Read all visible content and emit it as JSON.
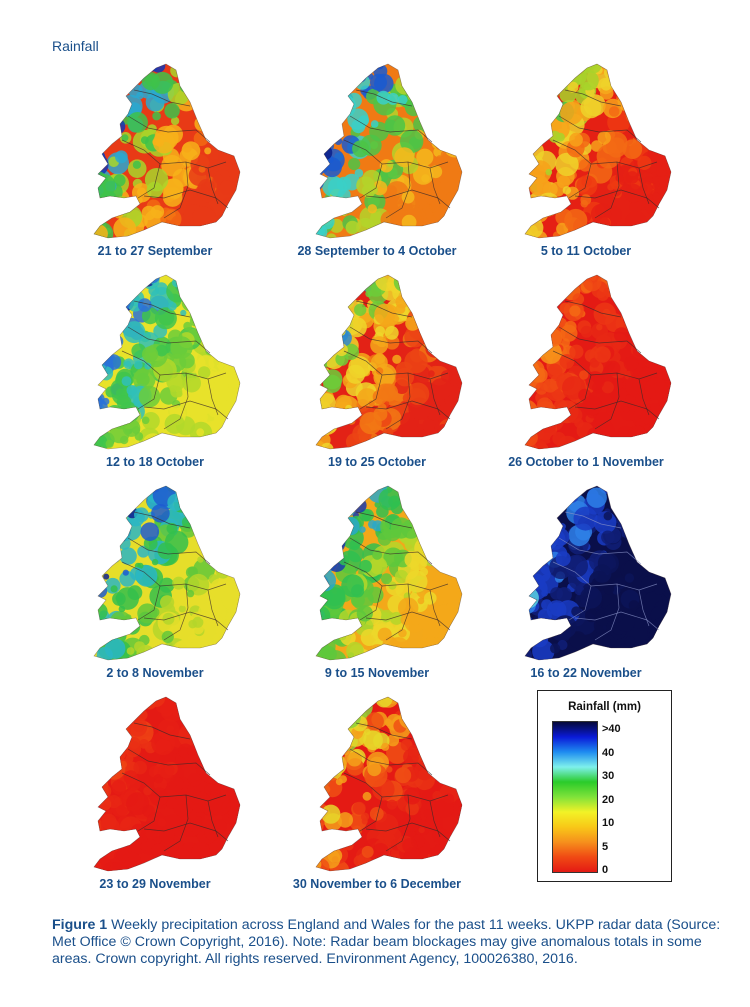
{
  "heading": "Rainfall",
  "maps": [
    {
      "label": "21 to 27 September",
      "palette": [
        "#e83a16",
        "#f26a12",
        "#f7b11a",
        "#a8d62a",
        "#3ec24a",
        "#2aa8d0",
        "#1236b8"
      ]
    },
    {
      "label": "28 September to 4 October",
      "palette": [
        "#f07a14",
        "#f5b81c",
        "#b4d42a",
        "#4cc446",
        "#3ad0c8",
        "#1a5ad0",
        "#0a1e8a"
      ]
    },
    {
      "label": "5 to 11 October",
      "palette": [
        "#e52014",
        "#ee3a12",
        "#f36a14",
        "#f7a21a",
        "#eed22a",
        "#a8d42a",
        "#48c448"
      ]
    },
    {
      "label": "12 to 18 October",
      "palette": [
        "#e8e22a",
        "#b2d82a",
        "#6ccc3a",
        "#3ec44e",
        "#30c0b8",
        "#2a72d8",
        "#10249a"
      ]
    },
    {
      "label": "19 to 25 October",
      "palette": [
        "#e32216",
        "#ec4414",
        "#f27814",
        "#f5a81a",
        "#eed62a",
        "#6ccc3a",
        "#2a8ad0"
      ]
    },
    {
      "label": "26 October to 1 November",
      "palette": [
        "#e41a14",
        "#e41a14",
        "#e82814",
        "#ec3614",
        "#f04a14",
        "#f46a14",
        "#f7961a"
      ]
    },
    {
      "label": "2 to 8 November",
      "palette": [
        "#e6de2a",
        "#b4d62a",
        "#62c83a",
        "#34c04c",
        "#2ab6c4",
        "#1e5cd0",
        "#0e2090"
      ]
    },
    {
      "label": "9 to 15 November",
      "palette": [
        "#f3a81a",
        "#ecd82a",
        "#b4d62a",
        "#5ec83c",
        "#30c050",
        "#2aa8c8",
        "#1a3ab0"
      ]
    },
    {
      "label": "16 to 22 November",
      "palette": [
        "#0a0f4a",
        "#0a0f4a",
        "#0c1458",
        "#101e78",
        "#1a3cc4",
        "#2e80e8",
        "#58d0e0"
      ]
    },
    {
      "label": "23 to 29 November",
      "palette": [
        "#e41a14",
        "#e41a14",
        "#e41a14",
        "#e61e14",
        "#e82614",
        "#ea3014",
        "#ee4414"
      ]
    },
    {
      "label": "30 November to 6 December",
      "palette": [
        "#e41a14",
        "#e62414",
        "#ea3214",
        "#f05014",
        "#f5a01a",
        "#e6d82a",
        "#8cd23a"
      ]
    }
  ],
  "legend": {
    "title": "Rainfall (mm)",
    "ticks": [
      ">40",
      "40",
      "30",
      "20",
      "10",
      "5",
      "0"
    ],
    "colors": [
      "#05083a",
      "#0a1ad8",
      "#1e8cf0",
      "#7ef0ec",
      "#2acb2a",
      "#7fe23a",
      "#f2f227",
      "#f8c818",
      "#f6901c",
      "#f04a14",
      "#e41a14"
    ]
  },
  "caption": {
    "lead": "Figure 1",
    "text": " Weekly precipitation across England and Wales for the past 11 weeks. UKPP radar data (Source: Met Office © Crown Copyright, 2016). Note: Radar beam blockages may give anomalous totals in some areas. Crown copyright. All rights reserved. Environment Agency, 100026380, 2016."
  }
}
